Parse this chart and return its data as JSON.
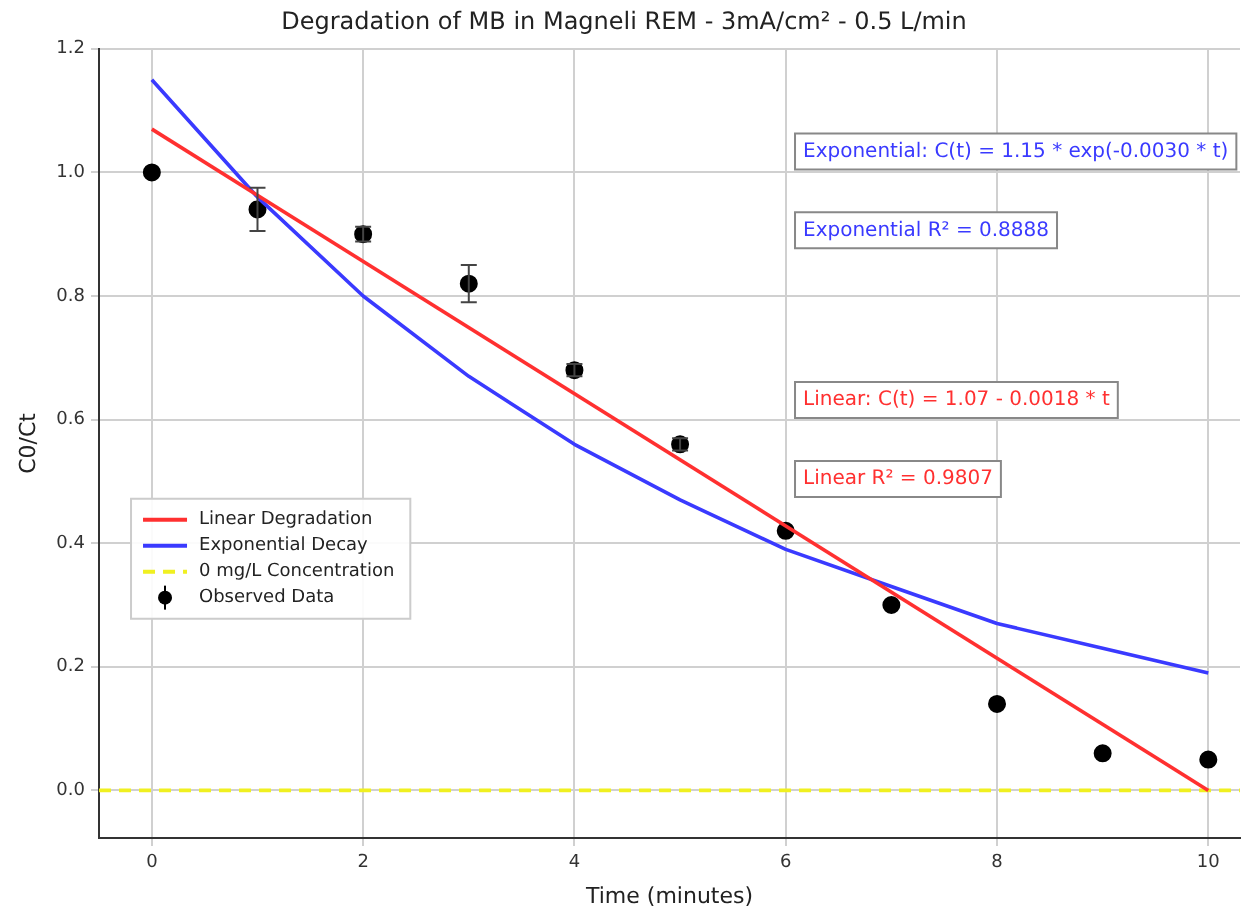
{
  "chart_data": {
    "type": "scatter",
    "title": "Degradation of MB in Magneli REM - 3mA/cm² - 0.5 L/min",
    "xlabel": "Time (minutes)",
    "ylabel": "C0/Ct",
    "xlim": [
      -0.5,
      10.3
    ],
    "ylim": [
      -0.077,
      1.2
    ],
    "xticks": [
      0,
      2,
      4,
      6,
      8,
      10
    ],
    "yticks": [
      {
        "value": 0,
        "label": "0.0"
      },
      0.2,
      0.4,
      0.6,
      0.8,
      {
        "value": 1,
        "label": "1.0"
      },
      1.2
    ],
    "grid": true,
    "legend": "center left",
    "series": [
      {
        "name": "Linear Degradation",
        "type": "line",
        "color": "#ff3030",
        "line_style": "solid",
        "x": [
          0,
          10
        ],
        "values": [
          1.07,
          0.0
        ]
      },
      {
        "name": "Exponential Decay",
        "type": "line",
        "color": "#3a3aff",
        "line_style": "solid",
        "x": [
          0,
          1,
          2,
          3,
          4,
          5,
          6,
          7,
          8,
          9,
          10
        ],
        "values": [
          1.15,
          0.96,
          0.8,
          0.67,
          0.56,
          0.47,
          0.39,
          0.33,
          0.27,
          0.23,
          0.19
        ]
      },
      {
        "name": "0 mg/L Concentration",
        "type": "line",
        "color": "#f0f020",
        "line_style": "dashed",
        "x": [
          -0.5,
          10.3
        ],
        "values": [
          0,
          0
        ]
      },
      {
        "name": "Observed Data",
        "type": "scatter",
        "color": "#000000",
        "marker": "circle",
        "x": [
          0,
          1,
          2,
          3,
          4,
          5,
          6,
          7,
          8,
          9,
          10
        ],
        "values": [
          1.0,
          0.94,
          0.9,
          0.82,
          0.68,
          0.56,
          0.42,
          0.3,
          0.14,
          0.06,
          0.05
        ],
        "errors": [
          null,
          0.035,
          0.012,
          0.03,
          0.01,
          0.01,
          null,
          null,
          null,
          null,
          null
        ]
      }
    ],
    "annotations": [
      "Exponential: C(t) = 1.15 * exp(-0.0030 * t)",
      "Exponential R² = 0.8888",
      "Linear: C(t) = 1.07 - 0.0018 * t",
      "Linear R² = 0.9807"
    ]
  }
}
